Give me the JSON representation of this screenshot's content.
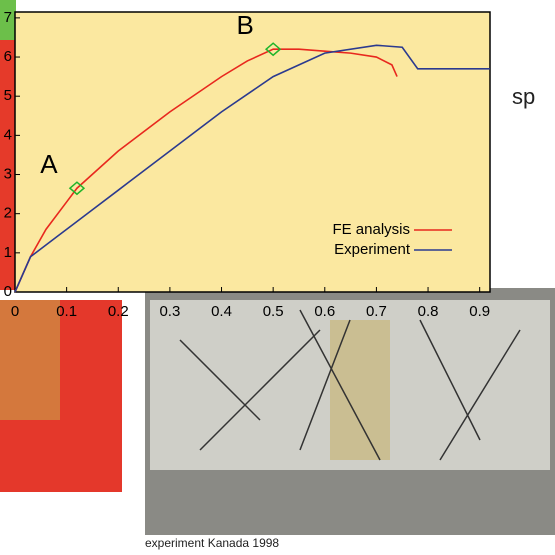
{
  "chart_data": {
    "type": "line",
    "xlim": [
      0,
      0.92
    ],
    "ylim": [
      0,
      7.15
    ],
    "xticks": [
      0,
      0.1,
      0.2,
      0.3,
      0.4,
      0.5,
      0.6,
      0.7,
      0.8,
      0.9
    ],
    "yticks": [
      0,
      1,
      2,
      3,
      4,
      5,
      6,
      7
    ],
    "legend": "lower right",
    "series": [
      {
        "name": "FE analysis",
        "color": "#e8281e",
        "x": [
          0,
          0.03,
          0.06,
          0.1,
          0.12,
          0.2,
          0.3,
          0.4,
          0.45,
          0.5,
          0.55,
          0.6,
          0.65,
          0.7,
          0.73,
          0.74
        ],
        "values": [
          0,
          0.9,
          1.6,
          2.3,
          2.65,
          3.6,
          4.6,
          5.5,
          5.9,
          6.2,
          6.2,
          6.15,
          6.1,
          6.0,
          5.8,
          5.5
        ]
      },
      {
        "name": "Experiment",
        "color": "#2b3a8f",
        "x": [
          0,
          0.03,
          0.08,
          0.12,
          0.15,
          0.2,
          0.3,
          0.4,
          0.5,
          0.6,
          0.7,
          0.75,
          0.78,
          0.92
        ],
        "values": [
          0,
          0.9,
          1.4,
          1.8,
          2.1,
          2.6,
          3.6,
          4.6,
          5.5,
          6.1,
          6.3,
          6.25,
          5.7,
          5.7
        ]
      }
    ],
    "markers": [
      {
        "label": "A",
        "x": 0.12,
        "y": 2.65
      },
      {
        "label": "B",
        "x": 0.5,
        "y": 6.2
      }
    ]
  },
  "side_text": "sp",
  "caption": "experiment Kanada 1998"
}
